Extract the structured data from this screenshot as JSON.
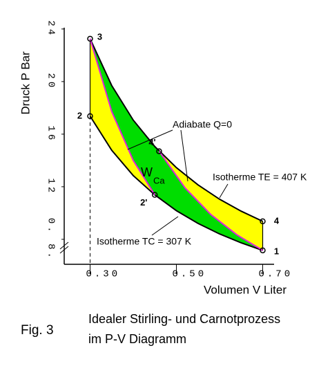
{
  "chart_data": {
    "type": "pv-diagram",
    "x_label": "Volumen V Liter",
    "y_label": "Druck P Bar",
    "xlim": [
      0.24,
      0.72
    ],
    "ylim": [
      6.1,
      24.1
    ],
    "xticks": [
      {
        "value": 0.3,
        "label": "0.30"
      },
      {
        "value": 0.5,
        "label": "0.50"
      },
      {
        "value": 0.7,
        "label": "0.70"
      }
    ],
    "yticks": [
      {
        "value": 8,
        "label": "0. 8."
      },
      12,
      16,
      20,
      24
    ],
    "series": [
      {
        "name": "Isotherme TE = 407 K",
        "color": "#000000",
        "x": [
          0.3,
          0.35,
          0.4,
          0.45,
          0.5,
          0.55,
          0.6,
          0.65,
          0.7
        ],
        "values": [
          23.26,
          19.7,
          17.07,
          15.05,
          13.45,
          12.14,
          11.05,
          10.14,
          9.37
        ]
      },
      {
        "name": "Isotherme TC = 307 K",
        "color": "#000000",
        "x": [
          0.3,
          0.35,
          0.4,
          0.45,
          0.5,
          0.55,
          0.6,
          0.65,
          0.7
        ],
        "values": [
          17.37,
          14.78,
          12.85,
          11.38,
          10.18,
          9.21,
          8.41,
          7.73,
          7.16
        ]
      },
      {
        "name": "Adiabate Q=0",
        "color": "#e020e0",
        "x": [
          0.3,
          0.35,
          0.4,
          0.45,
          null,
          0.46,
          0.52,
          0.58,
          0.64,
          0.7
        ],
        "values": [
          23.26,
          17.72,
          14.0,
          11.38,
          null,
          14.7,
          11.91,
          9.88,
          8.35,
          7.16
        ]
      }
    ],
    "points": [
      {
        "label": "3",
        "x": 0.3,
        "y": 23.26
      },
      {
        "label": "2",
        "x": 0.3,
        "y": 17.37
      },
      {
        "label": "4",
        "x": 0.7,
        "y": 9.37
      },
      {
        "label": "1",
        "x": 0.7,
        "y": 7.16
      },
      {
        "label": "2'",
        "x": 0.45,
        "y": 11.38
      },
      {
        "label": "4'",
        "x": 0.46,
        "y": 14.7
      }
    ],
    "stirling_color": "#ffff00",
    "carnot_color": "#00dd00",
    "work_label": "W",
    "work_label_sub": "Ca",
    "figure_label": "Fig. 3",
    "caption": [
      "Idealer Stirling- und Carnotprozess",
      "im P-V Diagramm"
    ]
  }
}
